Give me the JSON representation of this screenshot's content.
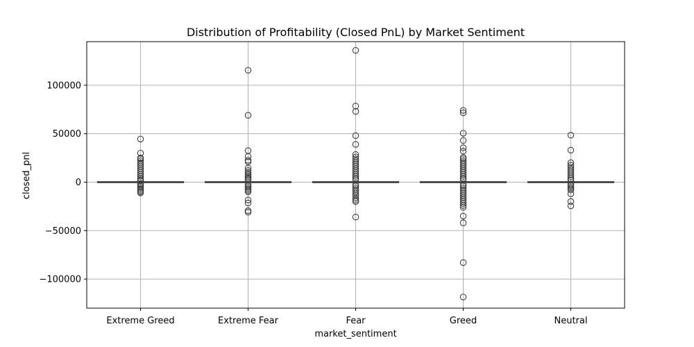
{
  "chart_data": {
    "type": "box",
    "title": "Distribution of Profitability (Closed PnL) by Market Sentiment",
    "xlabel": "market_sentiment",
    "ylabel": "closed_pnl",
    "ylim": [
      -130000,
      145000
    ],
    "yticks": [
      -100000,
      -50000,
      0,
      50000,
      100000
    ],
    "ytick_labels": [
      "−100000",
      "−50000",
      "0",
      "50000",
      "100000"
    ],
    "grid": true,
    "colors": {
      "box_edge": "#3d3d3d",
      "grid": "#b0b0b0",
      "axes": "#000000"
    },
    "categories": [
      "Extreme Greed",
      "Extreme Fear",
      "Fear",
      "Greed",
      "Neutral"
    ],
    "boxes": [
      {
        "category": "Extreme Greed",
        "q1": 0,
        "median": 0,
        "q3": 0,
        "whisker_low": 0,
        "whisker_high": 0,
        "outliers": [
          44500,
          30000,
          25000,
          24000,
          22000,
          20000,
          18000,
          16000,
          14000,
          12000,
          10000,
          8000,
          6000,
          4000,
          2500,
          1500,
          -1500,
          -2500,
          -4000,
          -5500,
          -7000,
          -8500,
          -10000,
          -11000
        ]
      },
      {
        "category": "Extreme Fear",
        "q1": 0,
        "median": 0,
        "q3": 0,
        "whisker_low": 0,
        "whisker_high": 0,
        "outliers": [
          115500,
          69000,
          32500,
          26500,
          22500,
          21000,
          14500,
          12000,
          10000,
          8000,
          6500,
          5000,
          3500,
          2500,
          -2500,
          -4000,
          -5500,
          -7000,
          -8500,
          -10000,
          -18500,
          -21500,
          -29500,
          -31000
        ]
      },
      {
        "category": "Fear",
        "q1": 0,
        "median": 0,
        "q3": 0,
        "whisker_low": 0,
        "whisker_high": 0,
        "outliers": [
          136000,
          78500,
          73000,
          48000,
          39000,
          28500,
          26000,
          24000,
          22000,
          20000,
          18000,
          16000,
          14000,
          12000,
          10000,
          8000,
          6000,
          4000,
          2500,
          -2500,
          -4000,
          -6000,
          -8000,
          -10000,
          -12000,
          -14000,
          -16500,
          -18500,
          -20000,
          -36000
        ]
      },
      {
        "category": "Greed",
        "q1": 0,
        "median": 0,
        "q3": 0,
        "whisker_low": 0,
        "whisker_high": 0,
        "outliers": [
          74000,
          71500,
          50500,
          43000,
          35500,
          32000,
          25500,
          24000,
          22000,
          20000,
          18000,
          16000,
          14000,
          12000,
          10000,
          8000,
          6000,
          4000,
          2500,
          -2500,
          -4000,
          -6000,
          -8000,
          -10000,
          -12000,
          -14000,
          -16000,
          -18000,
          -20000,
          -22000,
          -24000,
          -26000,
          -35000,
          -42000,
          -83000,
          -118500
        ]
      },
      {
        "category": "Neutral",
        "q1": 0,
        "median": 0,
        "q3": 0,
        "whisker_low": 0,
        "whisker_high": 0,
        "outliers": [
          48500,
          33000,
          20000,
          17500,
          15500,
          13500,
          11500,
          9500,
          7500,
          5500,
          3500,
          2000,
          -2000,
          -3500,
          -5000,
          -6500,
          -8000,
          -12000,
          -20000,
          -24500
        ]
      }
    ]
  }
}
